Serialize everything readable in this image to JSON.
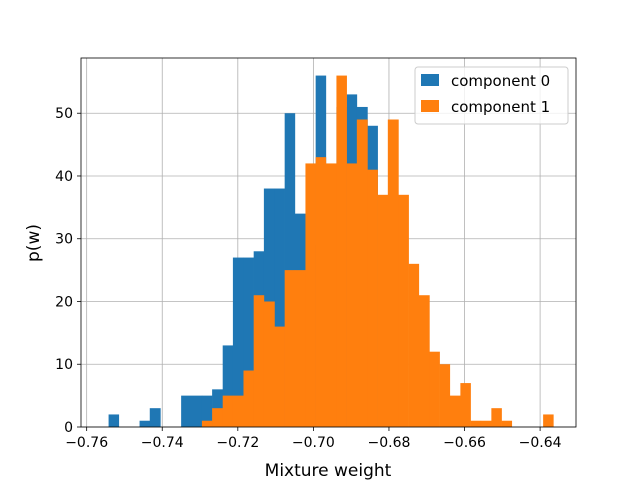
{
  "chart_data": {
    "type": "bar",
    "title": "",
    "xlabel": "Mixture weight",
    "ylabel": "p(w)",
    "xlim": [
      -0.7615,
      -0.6305
    ],
    "ylim": [
      0,
      58.8
    ],
    "xticks": [
      -0.76,
      -0.74,
      -0.72,
      -0.7,
      -0.68,
      -0.66,
      -0.64
    ],
    "xtick_labels": [
      "−0.76",
      "−0.74",
      "−0.72",
      "−0.70",
      "−0.68",
      "−0.66",
      "−0.64"
    ],
    "yticks": [
      0,
      10,
      20,
      30,
      40,
      50
    ],
    "ytick_labels": [
      "0",
      "10",
      "20",
      "30",
      "40",
      "50"
    ],
    "grid": true,
    "legend_position": "top-right",
    "series": [
      {
        "name": "component 0",
        "color": "#1f77b4",
        "bins": [
          {
            "x0": -0.7542,
            "x1": -0.7515,
            "y": 2
          },
          {
            "x0": -0.7515,
            "x1": -0.746,
            "y": 0
          },
          {
            "x0": -0.746,
            "x1": -0.7433,
            "y": 1
          },
          {
            "x0": -0.7433,
            "x1": -0.7405,
            "y": 3
          },
          {
            "x0": -0.7405,
            "x1": -0.735,
            "y": 0
          },
          {
            "x0": -0.735,
            "x1": -0.7295,
            "y": 5
          },
          {
            "x0": -0.7295,
            "x1": -0.7268,
            "y": 5
          },
          {
            "x0": -0.7268,
            "x1": -0.724,
            "y": 6
          },
          {
            "x0": -0.724,
            "x1": -0.7213,
            "y": 13
          },
          {
            "x0": -0.7213,
            "x1": -0.7185,
            "y": 27
          },
          {
            "x0": -0.7185,
            "x1": -0.7158,
            "y": 27
          },
          {
            "x0": -0.7158,
            "x1": -0.7131,
            "y": 28
          },
          {
            "x0": -0.7131,
            "x1": -0.7103,
            "y": 38
          },
          {
            "x0": -0.7103,
            "x1": -0.7076,
            "y": 38
          },
          {
            "x0": -0.7076,
            "x1": -0.7049,
            "y": 50
          },
          {
            "x0": -0.7049,
            "x1": -0.7021,
            "y": 34
          },
          {
            "x0": -0.7021,
            "x1": -0.6994,
            "y": 29
          },
          {
            "x0": -0.6994,
            "x1": -0.6967,
            "y": 56
          },
          {
            "x0": -0.6967,
            "x1": -0.6939,
            "y": 39
          },
          {
            "x0": -0.6939,
            "x1": -0.6912,
            "y": 51
          },
          {
            "x0": -0.6912,
            "x1": -0.6885,
            "y": 53
          },
          {
            "x0": -0.6885,
            "x1": -0.6857,
            "y": 51
          },
          {
            "x0": -0.6857,
            "x1": -0.683,
            "y": 48
          }
        ]
      },
      {
        "name": "component 1",
        "color": "#ff7f0e",
        "bins": [
          {
            "x0": -0.7295,
            "x1": -0.7268,
            "y": 1
          },
          {
            "x0": -0.7268,
            "x1": -0.724,
            "y": 3
          },
          {
            "x0": -0.724,
            "x1": -0.7213,
            "y": 5
          },
          {
            "x0": -0.7213,
            "x1": -0.7185,
            "y": 5
          },
          {
            "x0": -0.7185,
            "x1": -0.7158,
            "y": 9
          },
          {
            "x0": -0.7158,
            "x1": -0.7131,
            "y": 21
          },
          {
            "x0": -0.7131,
            "x1": -0.7103,
            "y": 20
          },
          {
            "x0": -0.7103,
            "x1": -0.7076,
            "y": 16
          },
          {
            "x0": -0.7076,
            "x1": -0.7049,
            "y": 25
          },
          {
            "x0": -0.7049,
            "x1": -0.7021,
            "y": 25
          },
          {
            "x0": -0.7021,
            "x1": -0.6994,
            "y": 42
          },
          {
            "x0": -0.6994,
            "x1": -0.6967,
            "y": 43
          },
          {
            "x0": -0.6967,
            "x1": -0.6939,
            "y": 42
          },
          {
            "x0": -0.6939,
            "x1": -0.6912,
            "y": 56
          },
          {
            "x0": -0.6912,
            "x1": -0.6885,
            "y": 42
          },
          {
            "x0": -0.6885,
            "x1": -0.6857,
            "y": 49
          },
          {
            "x0": -0.6857,
            "x1": -0.683,
            "y": 41
          },
          {
            "x0": -0.683,
            "x1": -0.6803,
            "y": 37
          },
          {
            "x0": -0.6803,
            "x1": -0.6775,
            "y": 49
          },
          {
            "x0": -0.6775,
            "x1": -0.6748,
            "y": 37
          },
          {
            "x0": -0.6748,
            "x1": -0.6721,
            "y": 26
          },
          {
            "x0": -0.6721,
            "x1": -0.6693,
            "y": 21
          },
          {
            "x0": -0.6693,
            "x1": -0.6666,
            "y": 12
          },
          {
            "x0": -0.6666,
            "x1": -0.6639,
            "y": 10
          },
          {
            "x0": -0.6639,
            "x1": -0.6611,
            "y": 5
          },
          {
            "x0": -0.6611,
            "x1": -0.6584,
            "y": 7
          },
          {
            "x0": -0.6584,
            "x1": -0.6557,
            "y": 1
          },
          {
            "x0": -0.6557,
            "x1": -0.6529,
            "y": 1
          },
          {
            "x0": -0.6529,
            "x1": -0.6502,
            "y": 3
          },
          {
            "x0": -0.6502,
            "x1": -0.6475,
            "y": 1
          },
          {
            "x0": -0.6475,
            "x1": -0.6392,
            "y": 0
          },
          {
            "x0": -0.6392,
            "x1": -0.6365,
            "y": 2
          }
        ]
      }
    ]
  }
}
